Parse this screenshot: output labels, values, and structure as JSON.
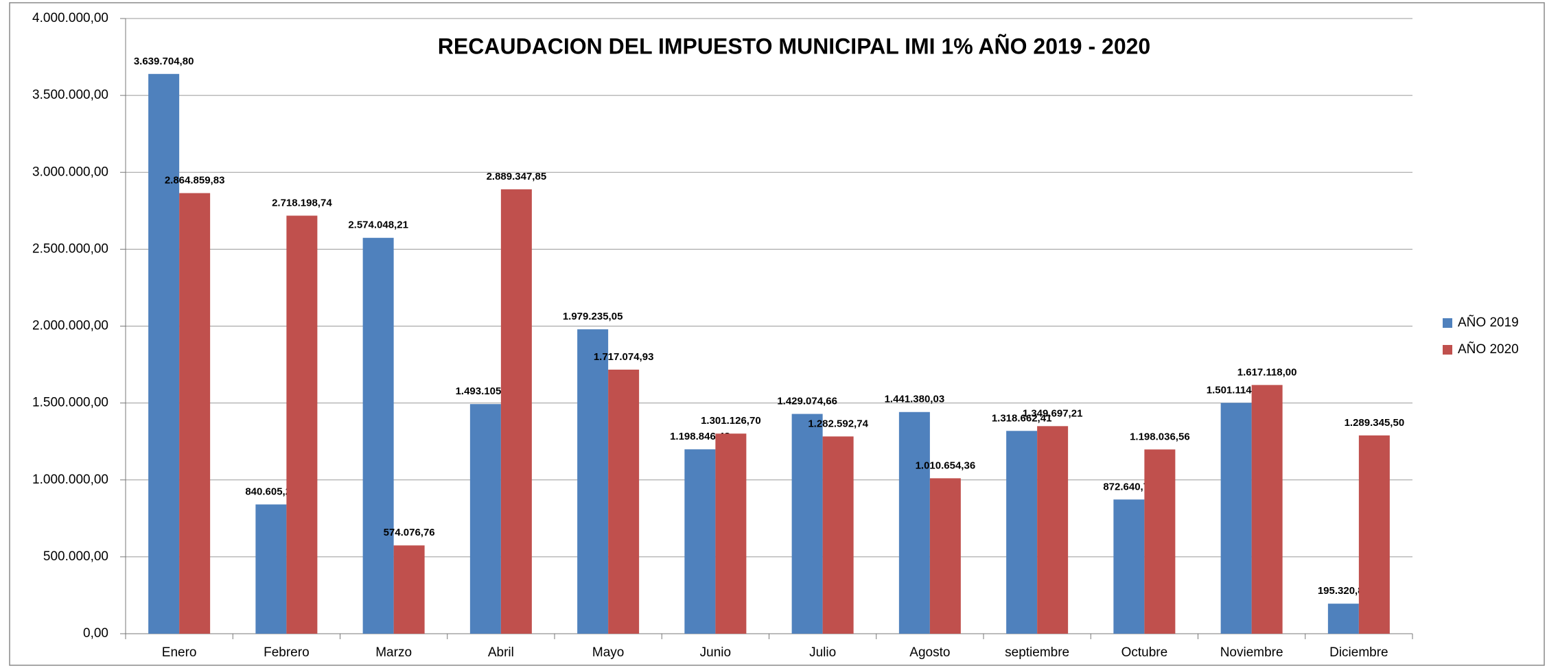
{
  "chart_data": {
    "type": "bar",
    "title": "RECAUDACION DEL IMPUESTO MUNICIPAL IMI 1% AÑO 2019 - 2020",
    "categories": [
      "Enero",
      "Febrero",
      "Marzo",
      "Abril",
      "Mayo",
      "Junio",
      "Julio",
      "Agosto",
      "septiembre",
      "Octubre",
      "Noviembre",
      "Diciembre"
    ],
    "series": [
      {
        "name": "AÑO 2019",
        "color": "#4f81bd",
        "values": [
          3639704.8,
          840605.26,
          2574048.21,
          1493105.23,
          1979235.05,
          1198846.48,
          1429074.66,
          1441380.03,
          1318662.41,
          872640.71,
          1501114.32,
          195320.84
        ],
        "value_labels": [
          "3.639.704,80",
          "840.605,26",
          "2.574.048,21",
          "1.493.105,23",
          "1.979.235,05",
          "1.198.846,48",
          "1.429.074,66",
          "1.441.380,03",
          "1.318.662,41",
          "872.640,71",
          "1.501.114,32",
          "195.320,84"
        ]
      },
      {
        "name": "AÑO 2020",
        "color": "#c0504d",
        "values": [
          2864859.83,
          2718198.74,
          574076.76,
          2889347.85,
          1717074.93,
          1301126.7,
          1282592.74,
          1010654.36,
          1349697.21,
          1198036.56,
          1617118.0,
          1289345.5
        ],
        "value_labels": [
          "2.864.859,83",
          "2.718.198,74",
          "574.076,76",
          "2.889.347,85",
          "1.717.074,93",
          "1.301.126,70",
          "1.282.592,74",
          "1.010.654,36",
          "1.349.697,21",
          "1.198.036,56",
          "1.617.118,00",
          "1.289.345,50"
        ]
      }
    ],
    "ylim": [
      0,
      4000000
    ],
    "yticks": [
      {
        "value": 0,
        "label": "0,00"
      },
      {
        "value": 500000,
        "label": "500.000,00"
      },
      {
        "value": 1000000,
        "label": "1.000.000,00"
      },
      {
        "value": 1500000,
        "label": "1.500.000,00"
      },
      {
        "value": 2000000,
        "label": "2.000.000,00"
      },
      {
        "value": 2500000,
        "label": "2.500.000,00"
      },
      {
        "value": 3000000,
        "label": "3.000.000,00"
      },
      {
        "value": 3500000,
        "label": "3.500.000,00"
      },
      {
        "value": 4000000,
        "label": "4.000.000,00"
      }
    ],
    "grid": true,
    "legend": "right"
  }
}
